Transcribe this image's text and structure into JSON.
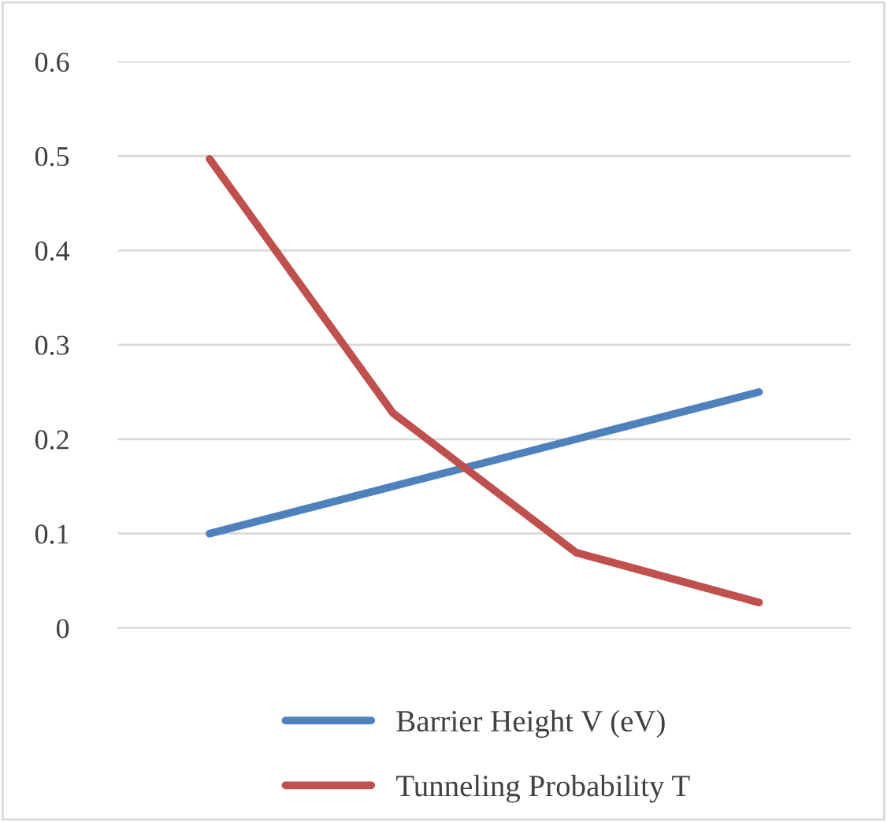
{
  "chart_data": {
    "type": "line",
    "categories": [
      null,
      null,
      null,
      null
    ],
    "series": [
      {
        "name": "Barrier Height V (eV)",
        "color": "#4f81bd",
        "values": [
          0.1,
          0.15,
          0.2,
          0.25
        ]
      },
      {
        "name": "Tunneling Probability T",
        "color": "#c0504d",
        "values": [
          0.497,
          0.228,
          0.08,
          0.027
        ]
      }
    ],
    "ylim": [
      0,
      0.6
    ],
    "yticks": [
      {
        "value": 0,
        "label": "0"
      },
      0.1,
      0.2,
      0.3,
      0.4,
      0.5,
      0.6
    ],
    "grid": "y",
    "legend": "bottom",
    "marker": "none",
    "line_style": "solid"
  }
}
